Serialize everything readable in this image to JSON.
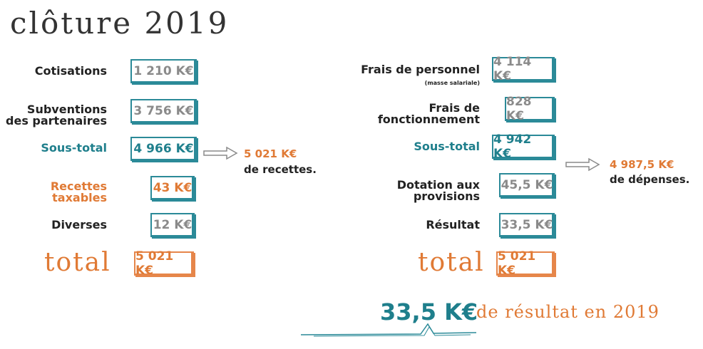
{
  "title": "clôture 2019",
  "left": {
    "rows": [
      {
        "label": "Cotisations",
        "value": "1 210 K€"
      },
      {
        "label_line1": "Subventions",
        "label_line2": "des partenaires",
        "value": "3 756 K€"
      },
      {
        "label": "Sous-total",
        "value": "4 966 K€"
      },
      {
        "label_line1": "Recettes",
        "label_line2": "taxables",
        "value": "43 K€"
      },
      {
        "label": "Diverses",
        "value": "12 K€"
      }
    ],
    "total_label": "total",
    "total_value": "5 021 K€",
    "summary_amount": "5 021 K€",
    "summary_text": "de recettes."
  },
  "right": {
    "rows": [
      {
        "label": "Frais de personnel",
        "sublabel": "(masse salariale)",
        "value": "4 114 K€"
      },
      {
        "label_line1": "Frais de",
        "label_line2": "fonctionnement",
        "value": "828 K€"
      },
      {
        "label": "Sous-total",
        "value": "4 942 K€"
      },
      {
        "label_line1": "Dotation aux",
        "label_line2": "provisions",
        "value": "45,5 K€"
      },
      {
        "label": "Résultat",
        "value": "33,5 K€"
      }
    ],
    "total_label": "total",
    "total_value": "5 021 K€",
    "summary_amount": "4 987,5 K€",
    "summary_text": "de dépenses."
  },
  "result": {
    "amount": "33,5 K€",
    "text": "de résultat en 2019"
  },
  "colors": {
    "teal": "#2b8a98",
    "orange": "#e6864a",
    "grey": "#8a8a8a",
    "dark": "#222222"
  }
}
